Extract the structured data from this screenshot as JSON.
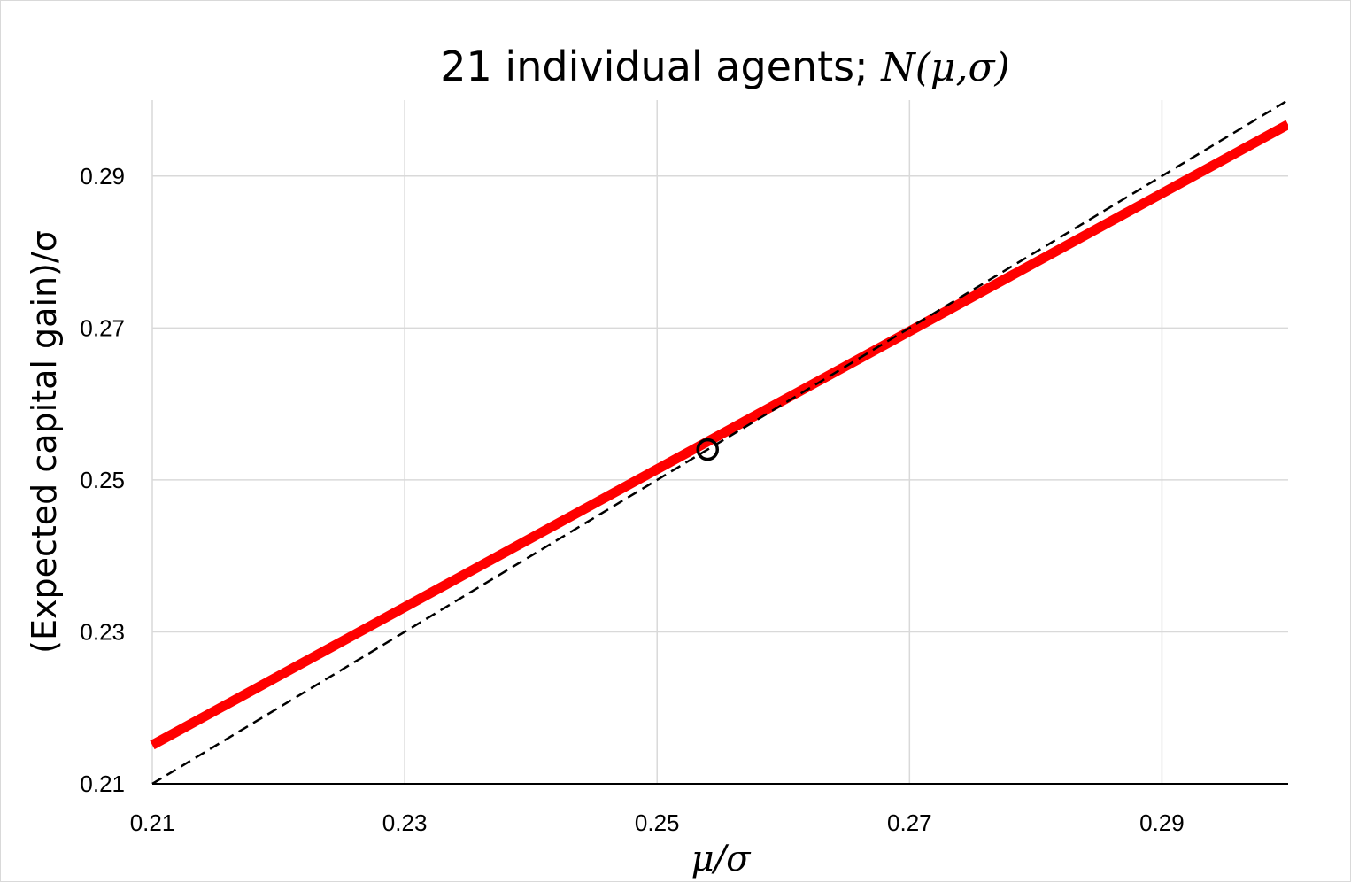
{
  "chart_data": {
    "type": "line",
    "title_prefix": "21 individual agents; ",
    "title_math": "N(μ,σ)",
    "xlabel": "μ/σ",
    "ylabel": "(Expected capital gain)/σ",
    "xlim": [
      0.21,
      0.3
    ],
    "ylim": [
      0.21,
      0.3
    ],
    "x_ticks": [
      0.21,
      0.23,
      0.25,
      0.27,
      0.29
    ],
    "y_ticks": [
      0.21,
      0.23,
      0.25,
      0.27,
      0.29
    ],
    "x_tick_labels": [
      "0.21",
      "0.23",
      "0.25",
      "0.27",
      "0.29"
    ],
    "y_tick_labels": [
      "0.21",
      "0.23",
      "0.25",
      "0.27",
      "0.29"
    ],
    "grid": true,
    "series": [
      {
        "style": "solid",
        "color": "#ff0000",
        "x": [
          0.21,
          0.3
        ],
        "y": [
          0.2151,
          0.2968
        ]
      },
      {
        "style": "dashed",
        "color": "#000000",
        "x": [
          0.21,
          0.3
        ],
        "y": [
          0.21,
          0.3
        ]
      }
    ],
    "marker": {
      "x": 0.254,
      "y": 0.254,
      "shape": "open-circle",
      "color": "#000000"
    }
  }
}
